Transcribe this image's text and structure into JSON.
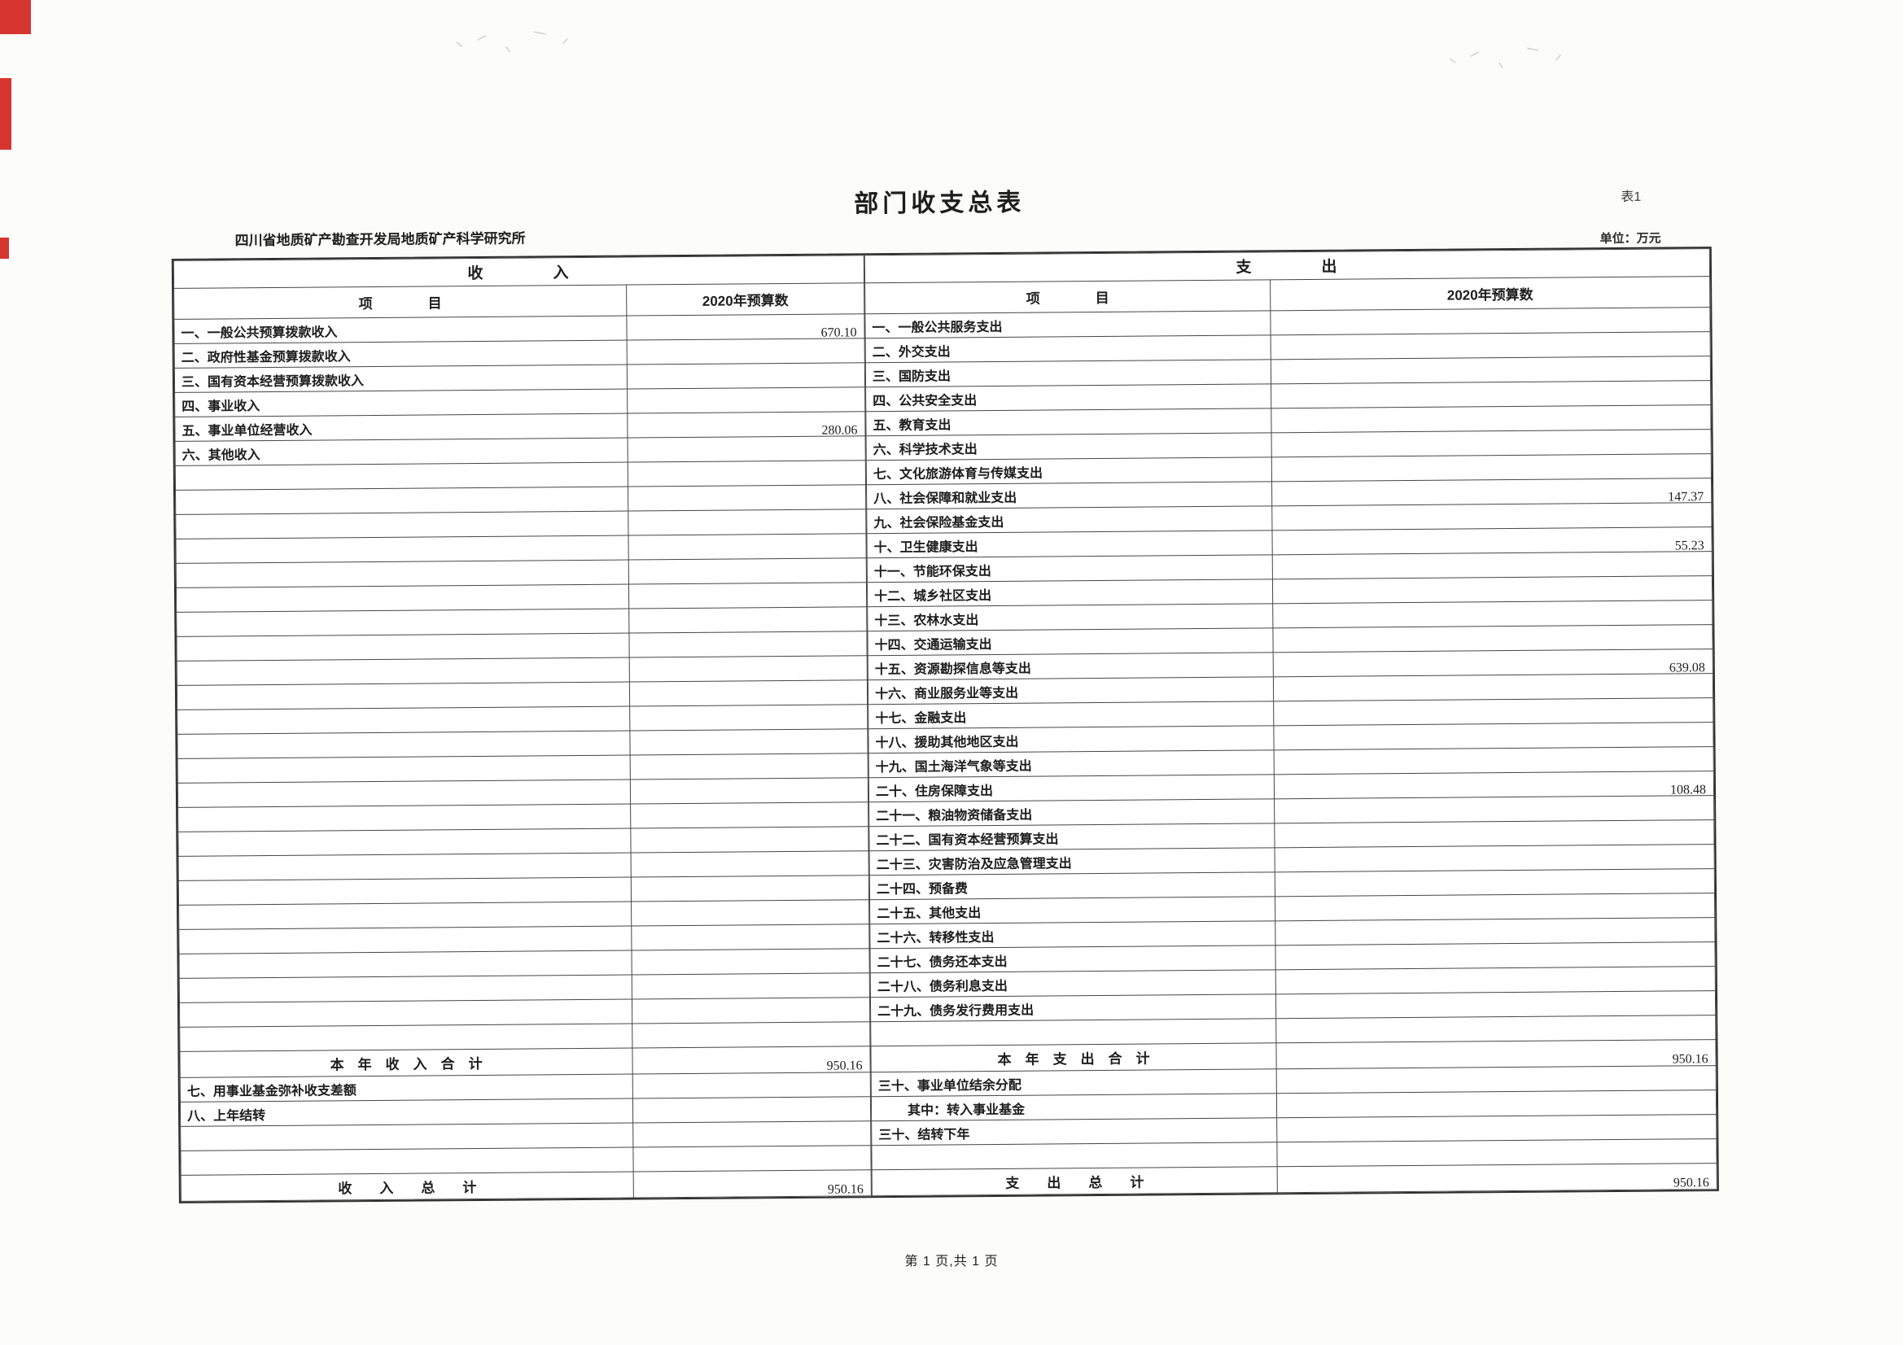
{
  "page": {
    "title": "部门收支总表",
    "table_label": "表1",
    "org_name": "四川省地质矿产勘查开发局地质矿产科学研究所",
    "unit_label": "单位：万元",
    "footer": "第 1 页,共 1 页"
  },
  "colors": {
    "scan_mark_red": "#d5352e"
  },
  "income": {
    "section_title": "收　　　　入",
    "col_item": "项　　　　目",
    "col_budget": "2020年预算数",
    "rows": [
      {
        "label": "一、一般公共预算拨款收入",
        "value": "670.10"
      },
      {
        "label": "二、政府性基金预算拨款收入",
        "value": ""
      },
      {
        "label": "三、国有资本经营预算拨款收入",
        "value": ""
      },
      {
        "label": "四、事业收入",
        "value": ""
      },
      {
        "label": "五、事业单位经营收入",
        "value": "280.06"
      },
      {
        "label": "六、其他收入",
        "value": ""
      }
    ],
    "blank_rows": 24,
    "subtotal": {
      "label": "本　年　收　入　合　计",
      "value": "950.16"
    },
    "extra_rows": [
      {
        "label": "七、用事业基金弥补收支差额",
        "value": ""
      },
      {
        "label": "八、上年结转",
        "value": ""
      },
      {
        "label": "",
        "value": ""
      },
      {
        "label": "",
        "value": ""
      }
    ],
    "total": {
      "label": "收　　入　　总　　计",
      "value": "950.16"
    }
  },
  "expenditure": {
    "section_title": "支　　　　出",
    "col_item": "项　　　　目",
    "col_budget": "2020年预算数",
    "rows": [
      {
        "label": "一、一般公共服务支出",
        "value": ""
      },
      {
        "label": "二、外交支出",
        "value": ""
      },
      {
        "label": "三、国防支出",
        "value": ""
      },
      {
        "label": "四、公共安全支出",
        "value": ""
      },
      {
        "label": "五、教育支出",
        "value": ""
      },
      {
        "label": "六、科学技术支出",
        "value": ""
      },
      {
        "label": "七、文化旅游体育与传媒支出",
        "value": ""
      },
      {
        "label": "八、社会保障和就业支出",
        "value": "147.37"
      },
      {
        "label": "九、社会保险基金支出",
        "value": ""
      },
      {
        "label": "十、卫生健康支出",
        "value": "55.23"
      },
      {
        "label": "十一、节能环保支出",
        "value": ""
      },
      {
        "label": "十二、城乡社区支出",
        "value": ""
      },
      {
        "label": "十三、农林水支出",
        "value": ""
      },
      {
        "label": "十四、交通运输支出",
        "value": ""
      },
      {
        "label": "十五、资源勘探信息等支出",
        "value": "639.08"
      },
      {
        "label": "十六、商业服务业等支出",
        "value": ""
      },
      {
        "label": "十七、金融支出",
        "value": ""
      },
      {
        "label": "十八、援助其他地区支出",
        "value": ""
      },
      {
        "label": "十九、国土海洋气象等支出",
        "value": ""
      },
      {
        "label": "二十、住房保障支出",
        "value": "108.48"
      },
      {
        "label": "二十一、粮油物资储备支出",
        "value": ""
      },
      {
        "label": "二十二、国有资本经营预算支出",
        "value": ""
      },
      {
        "label": "二十三、灾害防治及应急管理支出",
        "value": ""
      },
      {
        "label": "二十四、预备费",
        "value": ""
      },
      {
        "label": "二十五、其他支出",
        "value": ""
      },
      {
        "label": "二十六、转移性支出",
        "value": ""
      },
      {
        "label": "二十七、债务还本支出",
        "value": ""
      },
      {
        "label": "二十八、债务利息支出",
        "value": ""
      },
      {
        "label": "二十九、债务发行费用支出",
        "value": ""
      }
    ],
    "blank_rows": 1,
    "subtotal": {
      "label": "本　年　支　出　合　计",
      "value": "950.16"
    },
    "extra_rows": [
      {
        "label": "三十、事业单位结余分配",
        "value": ""
      },
      {
        "label": "其中：转入事业基金",
        "value": "",
        "indent": true
      },
      {
        "label": "三十、结转下年",
        "value": ""
      },
      {
        "label": "",
        "value": ""
      }
    ],
    "total": {
      "label": "支　　出　　总　　计",
      "value": "950.16"
    }
  }
}
